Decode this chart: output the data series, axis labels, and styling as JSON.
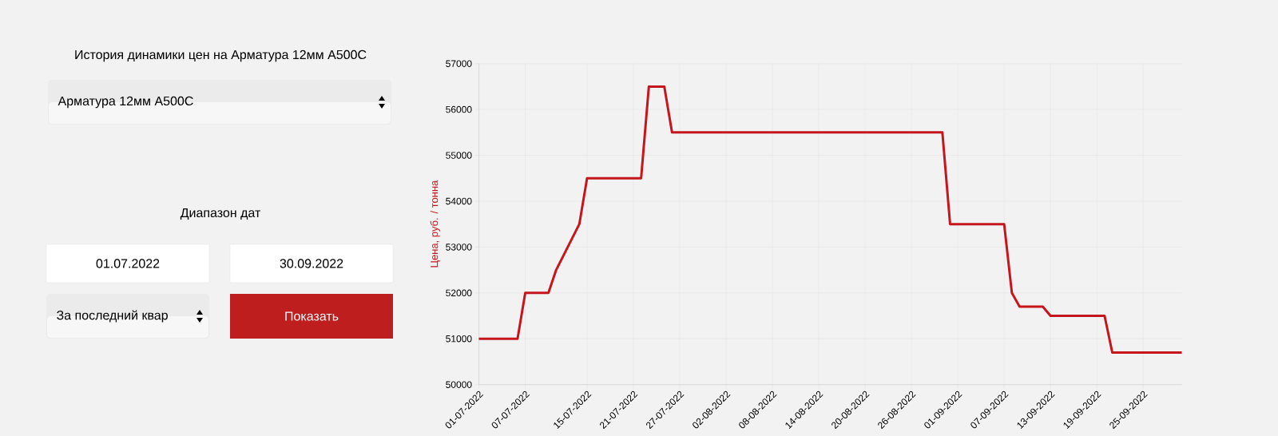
{
  "chart_data": {
    "type": "line",
    "title": "История динамики цен на Арматура 12мм А500С",
    "ylabel": "Цена, руб. / тонна",
    "annotations": [
      "Арматура 12мм А500С",
      "Диапазон дат",
      "01.07.2022",
      "30.09.2022",
      "За последний квар",
      "Показать"
    ],
    "x": [
      "2022-07-01",
      "2022-07-06",
      "2022-07-07",
      "2022-07-10",
      "2022-07-11",
      "2022-07-14",
      "2022-07-15",
      "2022-07-22",
      "2022-07-23",
      "2022-07-25",
      "2022-07-26",
      "2022-08-30",
      "2022-08-31",
      "2022-09-07",
      "2022-09-08",
      "2022-09-09",
      "2022-09-12",
      "2022-09-13",
      "2022-09-20",
      "2022-09-21",
      "2022-09-30"
    ],
    "series": [
      {
        "color": "#c4161c",
        "values": [
          51000,
          51000,
          52000,
          52000,
          52500,
          53500,
          54500,
          54500,
          56500,
          56500,
          55500,
          55500,
          53500,
          53500,
          52000,
          51700,
          51700,
          51500,
          51500,
          50700,
          50700
        ]
      }
    ],
    "xlim": [
      "2022-07-01",
      "2022-09-30"
    ],
    "xticks": [
      {
        "value": "2022-07-01",
        "label": "01-07-2022"
      },
      {
        "value": "2022-07-07",
        "label": "07-07-2022"
      },
      {
        "value": "2022-07-15",
        "label": "15-07-2022"
      },
      {
        "value": "2022-07-21",
        "label": "21-07-2022"
      },
      {
        "value": "2022-07-27",
        "label": "27-07-2022"
      },
      {
        "value": "2022-08-02",
        "label": "02-08-2022"
      },
      {
        "value": "2022-08-08",
        "label": "08-08-2022"
      },
      {
        "value": "2022-08-14",
        "label": "14-08-2022"
      },
      {
        "value": "2022-08-20",
        "label": "20-08-2022"
      },
      {
        "value": "2022-08-26",
        "label": "26-08-2022"
      },
      {
        "value": "2022-09-01",
        "label": "01-09-2022"
      },
      {
        "value": "2022-09-07",
        "label": "07-09-2022"
      },
      {
        "value": "2022-09-13",
        "label": "13-09-2022"
      },
      {
        "value": "2022-09-19",
        "label": "19-09-2022"
      },
      {
        "value": "2022-09-25",
        "label": "25-09-2022"
      }
    ],
    "ylim": [
      50000,
      57000
    ],
    "yticks": [
      50000,
      51000,
      52000,
      53000,
      54000,
      55000,
      56000,
      57000
    ],
    "grid": true,
    "marker": "none",
    "line_style": "solid"
  }
}
